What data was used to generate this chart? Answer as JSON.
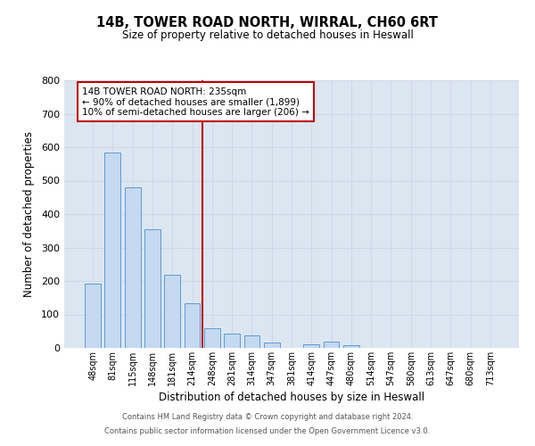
{
  "title": "14B, TOWER ROAD NORTH, WIRRAL, CH60 6RT",
  "subtitle": "Size of property relative to detached houses in Heswall",
  "xlabel": "Distribution of detached houses by size in Heswall",
  "ylabel": "Number of detached properties",
  "bar_labels": [
    "48sqm",
    "81sqm",
    "115sqm",
    "148sqm",
    "181sqm",
    "214sqm",
    "248sqm",
    "281sqm",
    "314sqm",
    "347sqm",
    "381sqm",
    "414sqm",
    "447sqm",
    "480sqm",
    "514sqm",
    "547sqm",
    "580sqm",
    "613sqm",
    "647sqm",
    "680sqm",
    "713sqm"
  ],
  "bar_values": [
    193,
    585,
    480,
    355,
    218,
    133,
    60,
    44,
    37,
    15,
    0,
    12,
    18,
    7,
    0,
    0,
    0,
    0,
    0,
    0,
    0
  ],
  "bar_color": "#c5d9f0",
  "bar_edge_color": "#5b9bd5",
  "vline_color": "#c00000",
  "vline_pos": 5.5,
  "annotation_text": "14B TOWER ROAD NORTH: 235sqm\n← 90% of detached houses are smaller (1,899)\n10% of semi-detached houses are larger (206) →",
  "annotation_box_color": "#ffffff",
  "annotation_box_edge": "#c00000",
  "ylim": [
    0,
    800
  ],
  "yticks": [
    0,
    100,
    200,
    300,
    400,
    500,
    600,
    700,
    800
  ],
  "grid_color": "#d0d8e8",
  "background_color": "#dce6f1",
  "footer_line1": "Contains HM Land Registry data © Crown copyright and database right 2024.",
  "footer_line2": "Contains public sector information licensed under the Open Government Licence v3.0."
}
